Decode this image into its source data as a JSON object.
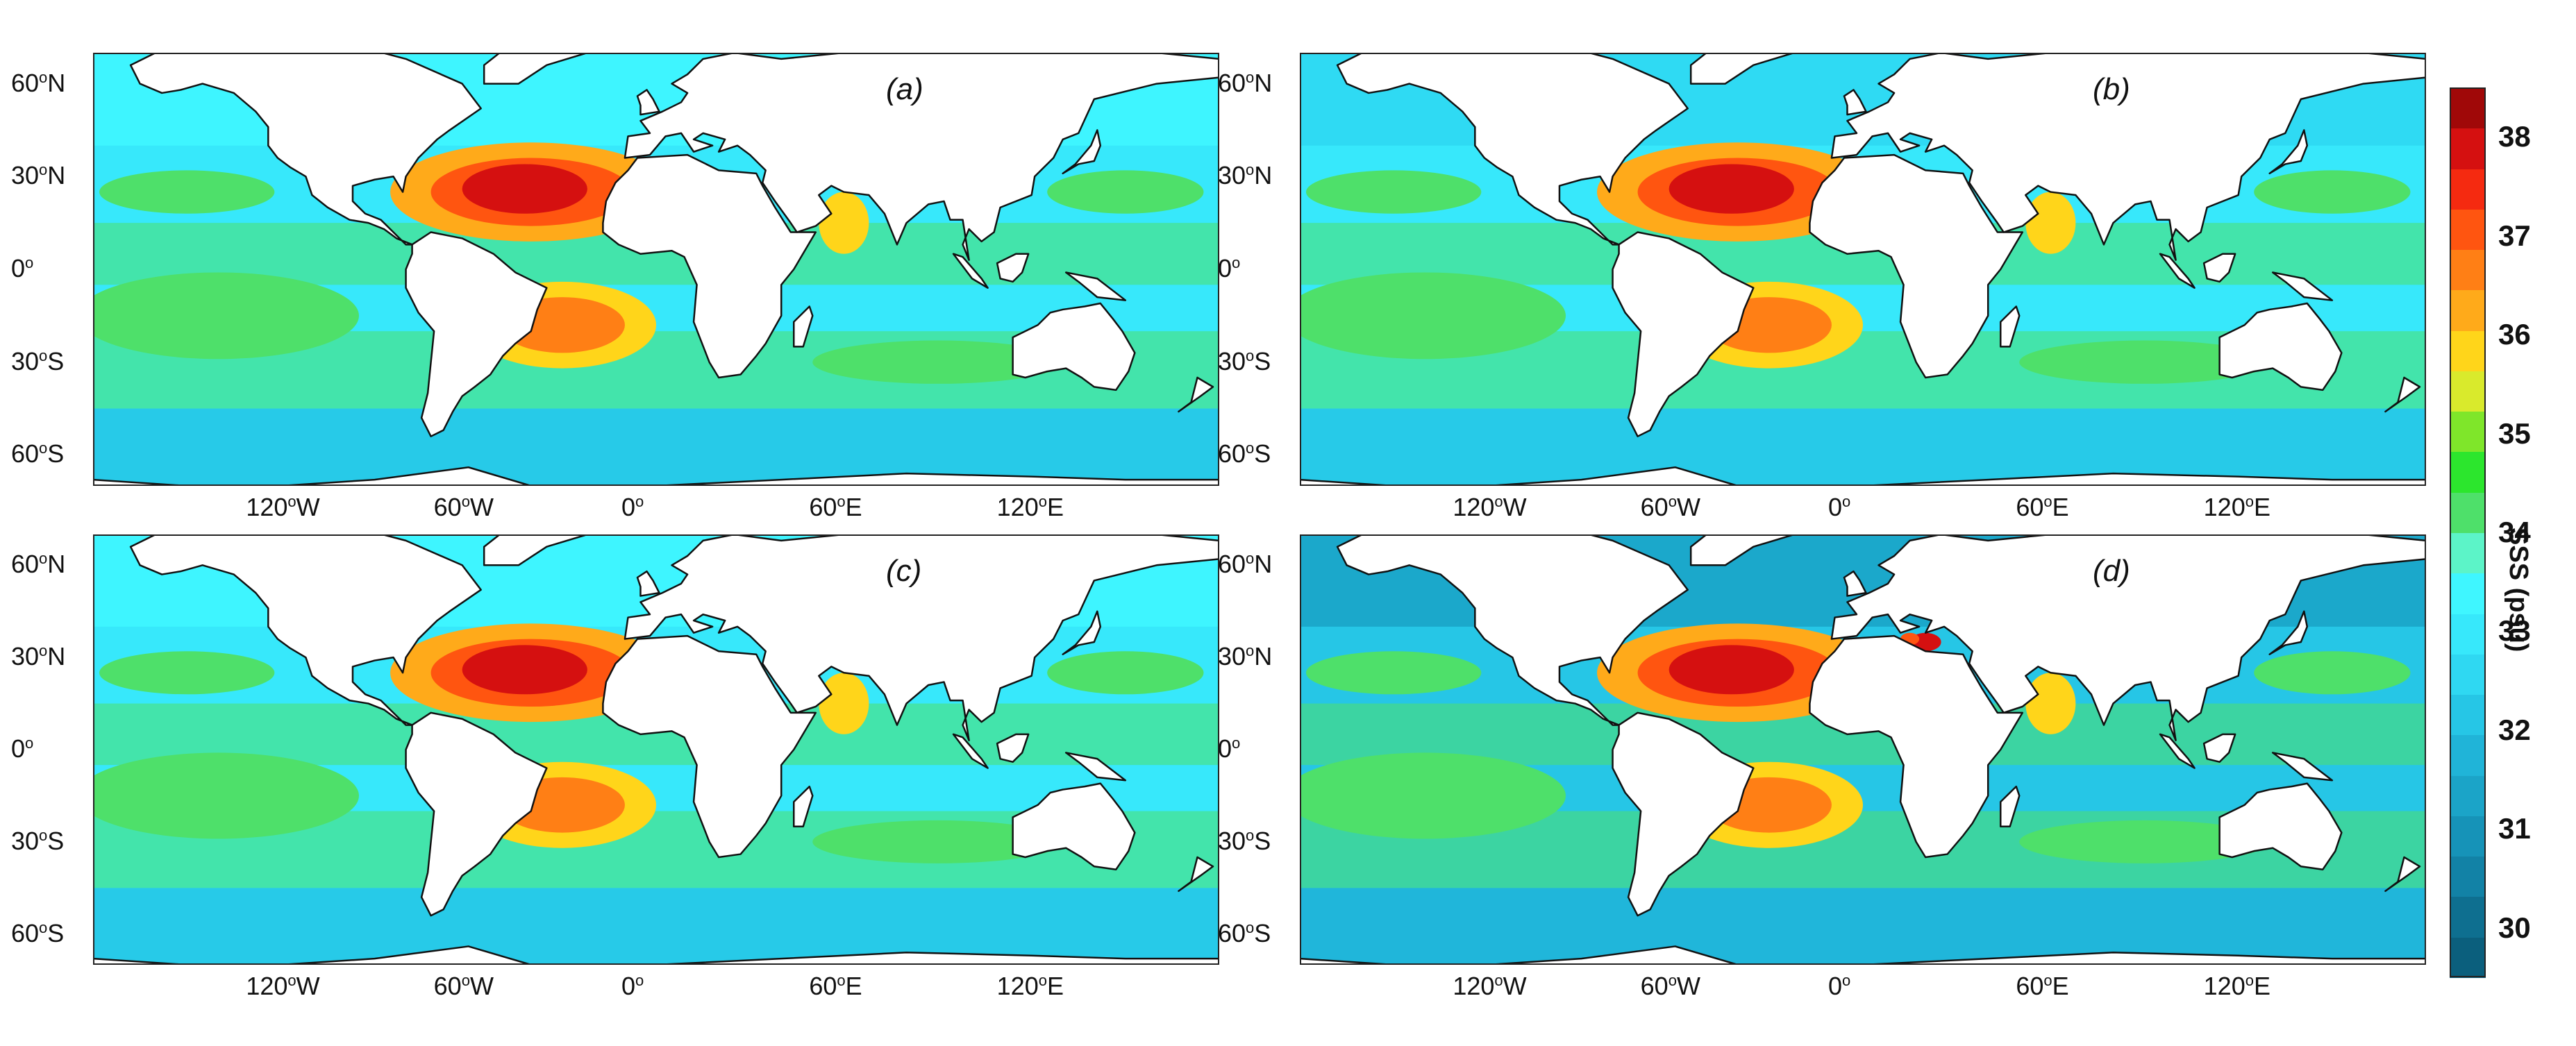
{
  "figure": {
    "panels": [
      {
        "label": "(a)",
        "id": "a"
      },
      {
        "label": "(b)",
        "id": "b"
      },
      {
        "label": "(c)",
        "id": "c"
      },
      {
        "label": "(d)",
        "id": "d"
      }
    ],
    "lat_ticks": [
      {
        "text": "60",
        "sup": "o",
        "hemi": "N",
        "lat": 60
      },
      {
        "text": "30",
        "sup": "o",
        "hemi": "N",
        "lat": 30
      },
      {
        "text": "0",
        "sup": "o",
        "hemi": "",
        "lat": 0
      },
      {
        "text": "30",
        "sup": "o",
        "hemi": "S",
        "lat": -30
      },
      {
        "text": "60",
        "sup": "o",
        "hemi": "S",
        "lat": -60
      }
    ],
    "lon_ticks": [
      {
        "text": "120",
        "sup": "o",
        "hemi": "W",
        "lon": -120
      },
      {
        "text": "60",
        "sup": "o",
        "hemi": "W",
        "lon": -60
      },
      {
        "text": "0",
        "sup": "o",
        "hemi": "",
        "lon": 0
      },
      {
        "text": "60",
        "sup": "o",
        "hemi": "E",
        "lon": 60
      },
      {
        "text": "120",
        "sup": "o",
        "hemi": "E",
        "lon": 120
      }
    ],
    "lon_range": [
      -180,
      180
    ],
    "lat_range": [
      -70,
      70
    ]
  },
  "colorbar": {
    "label": "SSS (psu)",
    "range": [
      29.5,
      38.5
    ],
    "ticks": [
      "30",
      "31",
      "32",
      "33",
      "34",
      "35",
      "36",
      "37",
      "38"
    ],
    "colors": [
      "#0b5f7d",
      "#0e6f90",
      "#1282a6",
      "#1693b8",
      "#1ba4c8",
      "#20b4d8",
      "#26c6e6",
      "#2fd8f2",
      "#37e8fb",
      "#3ff6ff",
      "#5cf4c8",
      "#4ee06a",
      "#2ce62d",
      "#7fe62a",
      "#d9ea2c",
      "#ffd51a",
      "#ffaa1a",
      "#ff7f15",
      "#ff5510",
      "#f52a10",
      "#d51010",
      "#a00808"
    ]
  }
}
